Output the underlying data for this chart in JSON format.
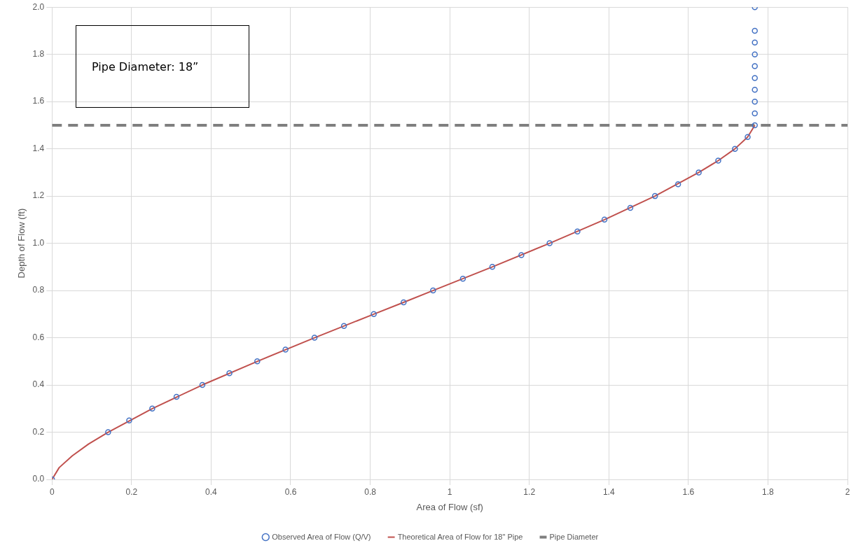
{
  "chart_data": {
    "type": "scatter",
    "xlabel": "Area of Flow (sf)",
    "ylabel": "Depth of Flow (ft)",
    "series": [
      {
        "name": "Observed Area of Flow (Q/V)",
        "color": "#4472c4",
        "marker": "circle",
        "x": [
          0,
          0.141,
          0.194,
          0.252,
          0.313,
          0.378,
          0.446,
          0.516,
          0.587,
          0.66,
          0.734,
          0.809,
          0.884,
          0.958,
          1.033,
          1.107,
          1.18,
          1.251,
          1.321,
          1.389,
          1.454,
          1.516,
          1.574,
          1.626,
          1.675,
          1.717,
          1.749,
          1.767,
          1.767,
          1.767,
          1.767,
          1.767,
          1.767,
          1.767,
          1.767,
          1.767,
          1.767
        ],
        "values": [
          0,
          0.2,
          0.25,
          0.3,
          0.35,
          0.4,
          0.45,
          0.5,
          0.55,
          0.6,
          0.65,
          0.7,
          0.75,
          0.8,
          0.85,
          0.9,
          0.95,
          1.0,
          1.05,
          1.1,
          1.15,
          1.2,
          1.25,
          1.3,
          1.35,
          1.4,
          1.45,
          1.5,
          1.55,
          1.6,
          1.65,
          1.7,
          1.75,
          1.8,
          1.85,
          1.9,
          2.0
        ]
      },
      {
        "name": "Theoretical Area of Flow for 18\" Pipe",
        "type": "line",
        "color": "#c0504d",
        "marker": "none",
        "line_style": "solid",
        "x": [
          0,
          0.018,
          0.051,
          0.092,
          0.141,
          0.252,
          0.378,
          0.516,
          0.66,
          0.809,
          0.884,
          0.958,
          1.107,
          1.251,
          1.389,
          1.516,
          1.626,
          1.675,
          1.717,
          1.749,
          1.767
        ],
        "values": [
          0,
          0.05,
          0.1,
          0.15,
          0.2,
          0.3,
          0.4,
          0.5,
          0.6,
          0.7,
          0.75,
          0.8,
          0.9,
          1.0,
          1.1,
          1.2,
          1.3,
          1.35,
          1.4,
          1.45,
          1.5
        ]
      }
    ],
    "ref_lines": [
      {
        "axis": "y",
        "value": 1.5,
        "label": "Pipe Diameter",
        "color": "#7f7f7f",
        "line_style": "dashed"
      }
    ],
    "annotations": [
      "Pipe Diameter: 18”"
    ],
    "xlim": [
      0,
      2
    ],
    "xticks": [
      0,
      0.2,
      0.4,
      0.6,
      0.8,
      1,
      1.2,
      1.4,
      1.6,
      1.8,
      2
    ],
    "ylim": [
      0,
      2
    ],
    "yticks": [
      {
        "value": 0,
        "label": "0.0"
      },
      0.2,
      0.4,
      0.6,
      0.8,
      {
        "value": 1,
        "label": "1.0"
      },
      1.2,
      1.4,
      1.6,
      1.8,
      {
        "value": 2,
        "label": "2.0"
      }
    ],
    "grid": true,
    "legend": "bottom"
  }
}
